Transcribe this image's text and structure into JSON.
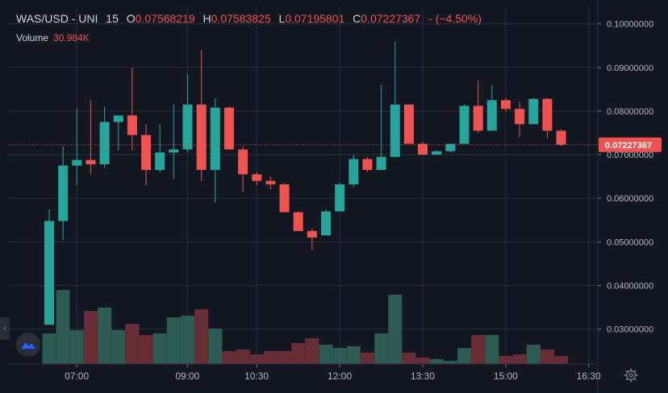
{
  "header": {
    "symbol": "WAS/USD",
    "dash": "-",
    "exchange": "UNI",
    "interval": "15",
    "open_label": "O",
    "open_value": "0.07568219",
    "high_label": "H",
    "high_value": "0.07583825",
    "low_label": "L",
    "low_value": "0.07195801",
    "close_label": "C",
    "close_value": "0.07227367",
    "change": "-",
    "change_pct": "(−4.50%)",
    "volume_label": "Volume",
    "volume_value": "30.984K"
  },
  "last_price_label": "0.07227367",
  "colors": {
    "background": "#131722",
    "up": "#26a69a",
    "down": "#ef5350",
    "grid": "#2a2e39",
    "text": "#b2b5be",
    "last_price": "#ef5350"
  },
  "icons": {
    "logo": "tradingview-logo-icon",
    "settings": "gear-icon",
    "collapse": "chevron-left-icon"
  },
  "chart_data": {
    "type": "candlestick",
    "x_ticks": [
      "07:00",
      "09:00",
      "10:30",
      "12:00",
      "13:30",
      "15:00",
      "16:30"
    ],
    "y_ticks": [
      "0.10000000",
      "0.09000000",
      "0.08000000",
      "0.07000000",
      "0.06000000",
      "0.05000000",
      "0.04000000",
      "0.03000000"
    ],
    "ylim": [
      0.022,
      0.104
    ],
    "volume_max": 100,
    "candles": [
      {
        "o": 0.031,
        "h": 0.0575,
        "l": 0.031,
        "c": 0.0548,
        "v": 19
      },
      {
        "o": 0.0548,
        "h": 0.072,
        "l": 0.0505,
        "c": 0.0675,
        "v": 46
      },
      {
        "o": 0.0675,
        "h": 0.0805,
        "l": 0.063,
        "c": 0.0688,
        "v": 21
      },
      {
        "o": 0.0688,
        "h": 0.0825,
        "l": 0.0655,
        "c": 0.0678,
        "v": 33
      },
      {
        "o": 0.0678,
        "h": 0.081,
        "l": 0.067,
        "c": 0.0775,
        "v": 35
      },
      {
        "o": 0.0775,
        "h": 0.0785,
        "l": 0.071,
        "c": 0.079,
        "v": 21
      },
      {
        "o": 0.079,
        "h": 0.09,
        "l": 0.071,
        "c": 0.0745,
        "v": 25
      },
      {
        "o": 0.0745,
        "h": 0.077,
        "l": 0.063,
        "c": 0.0665,
        "v": 18
      },
      {
        "o": 0.0665,
        "h": 0.077,
        "l": 0.066,
        "c": 0.0705,
        "v": 19
      },
      {
        "o": 0.0705,
        "h": 0.0815,
        "l": 0.0645,
        "c": 0.0712,
        "v": 29
      },
      {
        "o": 0.0712,
        "h": 0.0885,
        "l": 0.0705,
        "c": 0.0815,
        "v": 30
      },
      {
        "o": 0.0815,
        "h": 0.094,
        "l": 0.064,
        "c": 0.0665,
        "v": 34
      },
      {
        "o": 0.0665,
        "h": 0.083,
        "l": 0.059,
        "c": 0.0808,
        "v": 22
      },
      {
        "o": 0.0808,
        "h": 0.081,
        "l": 0.0712,
        "c": 0.0712,
        "v": 8
      },
      {
        "o": 0.0712,
        "h": 0.072,
        "l": 0.0615,
        "c": 0.0655,
        "v": 9
      },
      {
        "o": 0.0655,
        "h": 0.066,
        "l": 0.063,
        "c": 0.064,
        "v": 6
      },
      {
        "o": 0.064,
        "h": 0.065,
        "l": 0.062,
        "c": 0.0632,
        "v": 8
      },
      {
        "o": 0.0632,
        "h": 0.0635,
        "l": 0.0568,
        "c": 0.0568,
        "v": 8
      },
      {
        "o": 0.0568,
        "h": 0.057,
        "l": 0.0525,
        "c": 0.0525,
        "v": 13
      },
      {
        "o": 0.0525,
        "h": 0.053,
        "l": 0.0482,
        "c": 0.051,
        "v": 16
      },
      {
        "o": 0.0515,
        "h": 0.0575,
        "l": 0.0515,
        "c": 0.057,
        "v": 12
      },
      {
        "o": 0.057,
        "h": 0.0635,
        "l": 0.057,
        "c": 0.0632,
        "v": 10
      },
      {
        "o": 0.0632,
        "h": 0.07,
        "l": 0.0625,
        "c": 0.069,
        "v": 11
      },
      {
        "o": 0.069,
        "h": 0.0695,
        "l": 0.066,
        "c": 0.0665,
        "v": 7
      },
      {
        "o": 0.0665,
        "h": 0.086,
        "l": 0.0665,
        "c": 0.0695,
        "v": 19
      },
      {
        "o": 0.0695,
        "h": 0.096,
        "l": 0.0695,
        "c": 0.0815,
        "v": 43
      },
      {
        "o": 0.0815,
        "h": 0.0815,
        "l": 0.0725,
        "c": 0.0725,
        "v": 7
      },
      {
        "o": 0.0725,
        "h": 0.073,
        "l": 0.07,
        "c": 0.07,
        "v": 4
      },
      {
        "o": 0.07,
        "h": 0.071,
        "l": 0.07,
        "c": 0.0708,
        "v": 3
      },
      {
        "o": 0.0708,
        "h": 0.0725,
        "l": 0.0705,
        "c": 0.0725,
        "v": 2
      },
      {
        "o": 0.0725,
        "h": 0.0815,
        "l": 0.0725,
        "c": 0.0812,
        "v": 10
      },
      {
        "o": 0.0812,
        "h": 0.087,
        "l": 0.075,
        "c": 0.0755,
        "v": 18
      },
      {
        "o": 0.0755,
        "h": 0.086,
        "l": 0.0755,
        "c": 0.0825,
        "v": 18
      },
      {
        "o": 0.0825,
        "h": 0.083,
        "l": 0.08,
        "c": 0.0805,
        "v": 5
      },
      {
        "o": 0.0805,
        "h": 0.082,
        "l": 0.074,
        "c": 0.077,
        "v": 6
      },
      {
        "o": 0.077,
        "h": 0.083,
        "l": 0.077,
        "c": 0.0828,
        "v": 12
      },
      {
        "o": 0.0828,
        "h": 0.083,
        "l": 0.0738,
        "c": 0.0755,
        "v": 9
      },
      {
        "o": 0.0755,
        "h": 0.0758,
        "l": 0.072,
        "c": 0.0723,
        "v": 5
      }
    ]
  }
}
